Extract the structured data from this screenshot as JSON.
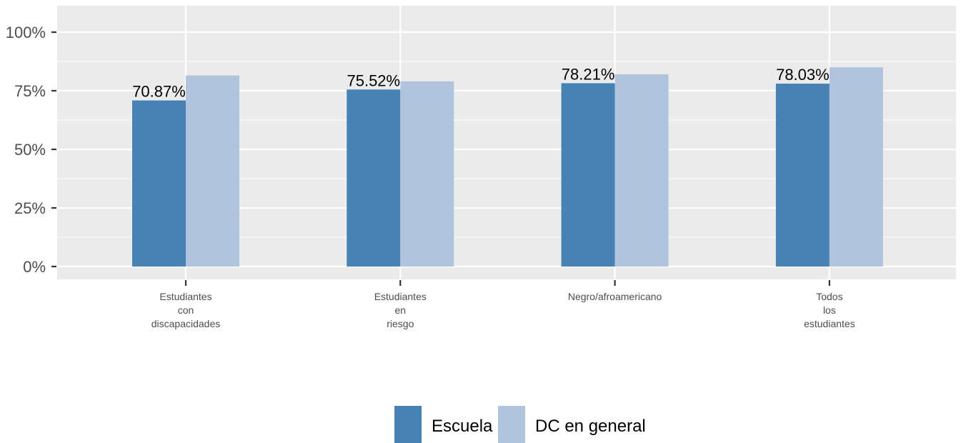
{
  "chart_data": {
    "type": "bar",
    "title": "",
    "xlabel": "",
    "ylabel": "",
    "ylim": [
      0,
      100
    ],
    "y_ticks": [
      "0%",
      "25%",
      "50%",
      "75%",
      "100%"
    ],
    "categories": [
      [
        "Estudiantes",
        "con",
        "discapacidades"
      ],
      [
        "Estudiantes",
        "en",
        "riesgo"
      ],
      [
        "Negro/afroamericano"
      ],
      [
        "Todos",
        "los",
        "estudiantes"
      ]
    ],
    "series": [
      {
        "name": "Escuela",
        "values": [
          70.87,
          75.52,
          78.21,
          78.03
        ],
        "labels": [
          "70.87%",
          "75.52%",
          "78.21%",
          "78.03%"
        ],
        "color": "#4682b4"
      },
      {
        "name": "DC en general",
        "values": [
          81.5,
          79.0,
          82.0,
          85.0
        ],
        "color": "#b0c4de"
      }
    ],
    "grid": true,
    "legend_position": "bottom",
    "panel_background": "#ebebeb"
  }
}
